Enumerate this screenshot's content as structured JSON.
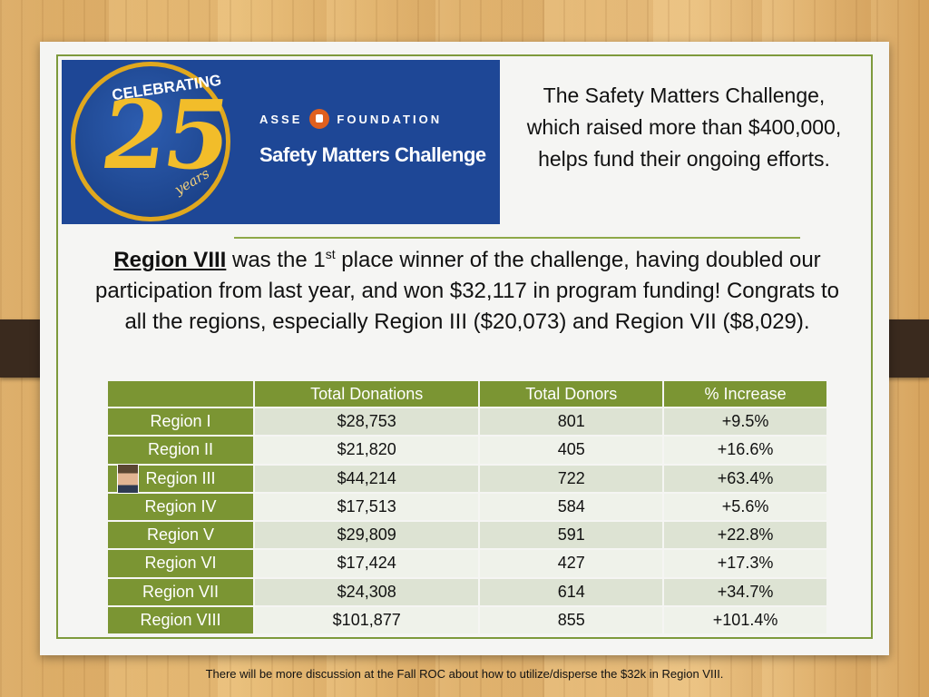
{
  "logo": {
    "celebrating": "CELEBRATING",
    "number": "25",
    "years": "years",
    "asse_left": "ASSE",
    "asse_right": "FOUNDATION",
    "challenge": "Safety Matters Challenge"
  },
  "intro_text": "The Safety Matters Challenge, which raised more than $400,000, helps fund their ongoing efforts.",
  "body": {
    "region": "Region VIII",
    "part1": " was the 1",
    "superscript": "st",
    "part2": " place winner of the challenge, having doubled our participation from last year, and won $32,117 in program funding! Congrats to all the regions, especially Region III ($20,073) and Region VII ($8,029)."
  },
  "table": {
    "headers": [
      "",
      "Total Donations",
      "Total Donors",
      "% Increase"
    ],
    "rows": [
      {
        "region": "Region I",
        "donations": "$28,753",
        "donors": "801",
        "increase": "+9.5%"
      },
      {
        "region": "Region II",
        "donations": "$21,820",
        "donors": "405",
        "increase": "+16.6%"
      },
      {
        "region": "Region III",
        "donations": "$44,214",
        "donors": "722",
        "increase": "+63.4%"
      },
      {
        "region": "Region IV",
        "donations": "$17,513",
        "donors": "584",
        "increase": "+5.6%"
      },
      {
        "region": "Region V",
        "donations": "$29,809",
        "donors": "591",
        "increase": "+22.8%"
      },
      {
        "region": "Region VI",
        "donations": "$17,424",
        "donors": "427",
        "increase": "+17.3%"
      },
      {
        "region": "Region VII",
        "donations": "$24,308",
        "donors": "614",
        "increase": "+34.7%"
      },
      {
        "region": "Region VIII",
        "donations": "$101,877",
        "donors": "855",
        "increase": "+101.4%"
      }
    ]
  },
  "footnote": "There will be more discussion at the Fall ROC about how to utilize/disperse the $32k in Region VIII.",
  "colors": {
    "accent_green": "#7b9533",
    "logo_blue": "#1e4796",
    "logo_gold": "#f2bd2a",
    "row_alt_1": "#dde3d3",
    "row_alt_2": "#eff2ea"
  }
}
